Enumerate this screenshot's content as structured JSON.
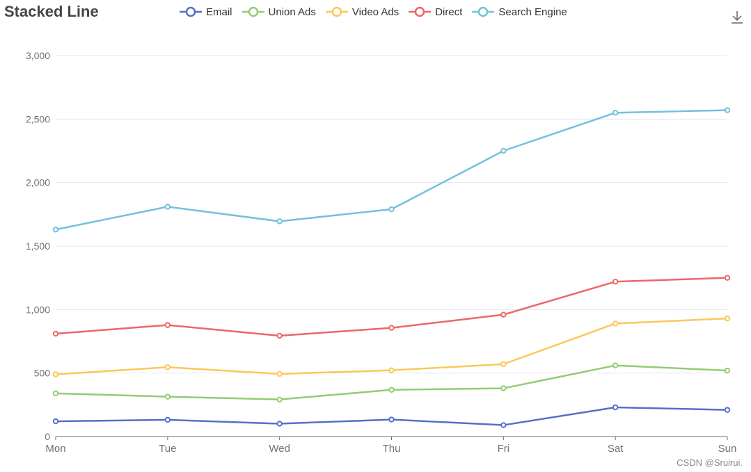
{
  "chart_data": {
    "type": "line",
    "title": "Stacked Line",
    "categories": [
      "Mon",
      "Tue",
      "Wed",
      "Thu",
      "Fri",
      "Sat",
      "Sun"
    ],
    "ylim": [
      0,
      3000
    ],
    "yticks": [
      0,
      500,
      1000,
      1500,
      2000,
      2500,
      3000
    ],
    "ytick_labels": [
      "0",
      "500",
      "1,000",
      "1,500",
      "2,000",
      "2,500",
      "3,000"
    ],
    "grid": true,
    "legend_position": "top",
    "stacked": true,
    "series": [
      {
        "name": "Email",
        "color": "#5470c6",
        "values": [
          120,
          132,
          101,
          134,
          90,
          230,
          210
        ]
      },
      {
        "name": "Union Ads",
        "color": "#91cc75",
        "values": [
          220,
          182,
          191,
          234,
          290,
          330,
          310
        ]
      },
      {
        "name": "Video Ads",
        "color": "#fac858",
        "values": [
          150,
          232,
          201,
          154,
          190,
          330,
          410
        ]
      },
      {
        "name": "Direct",
        "color": "#ee6666",
        "values": [
          320,
          332,
          301,
          334,
          390,
          330,
          320
        ]
      },
      {
        "name": "Search Engine",
        "color": "#73c0de",
        "values": [
          820,
          932,
          901,
          934,
          1290,
          1330,
          1320
        ]
      }
    ]
  },
  "toolbar": {
    "download_icon": "download-icon"
  },
  "watermark": "CSDN @Sruirui."
}
